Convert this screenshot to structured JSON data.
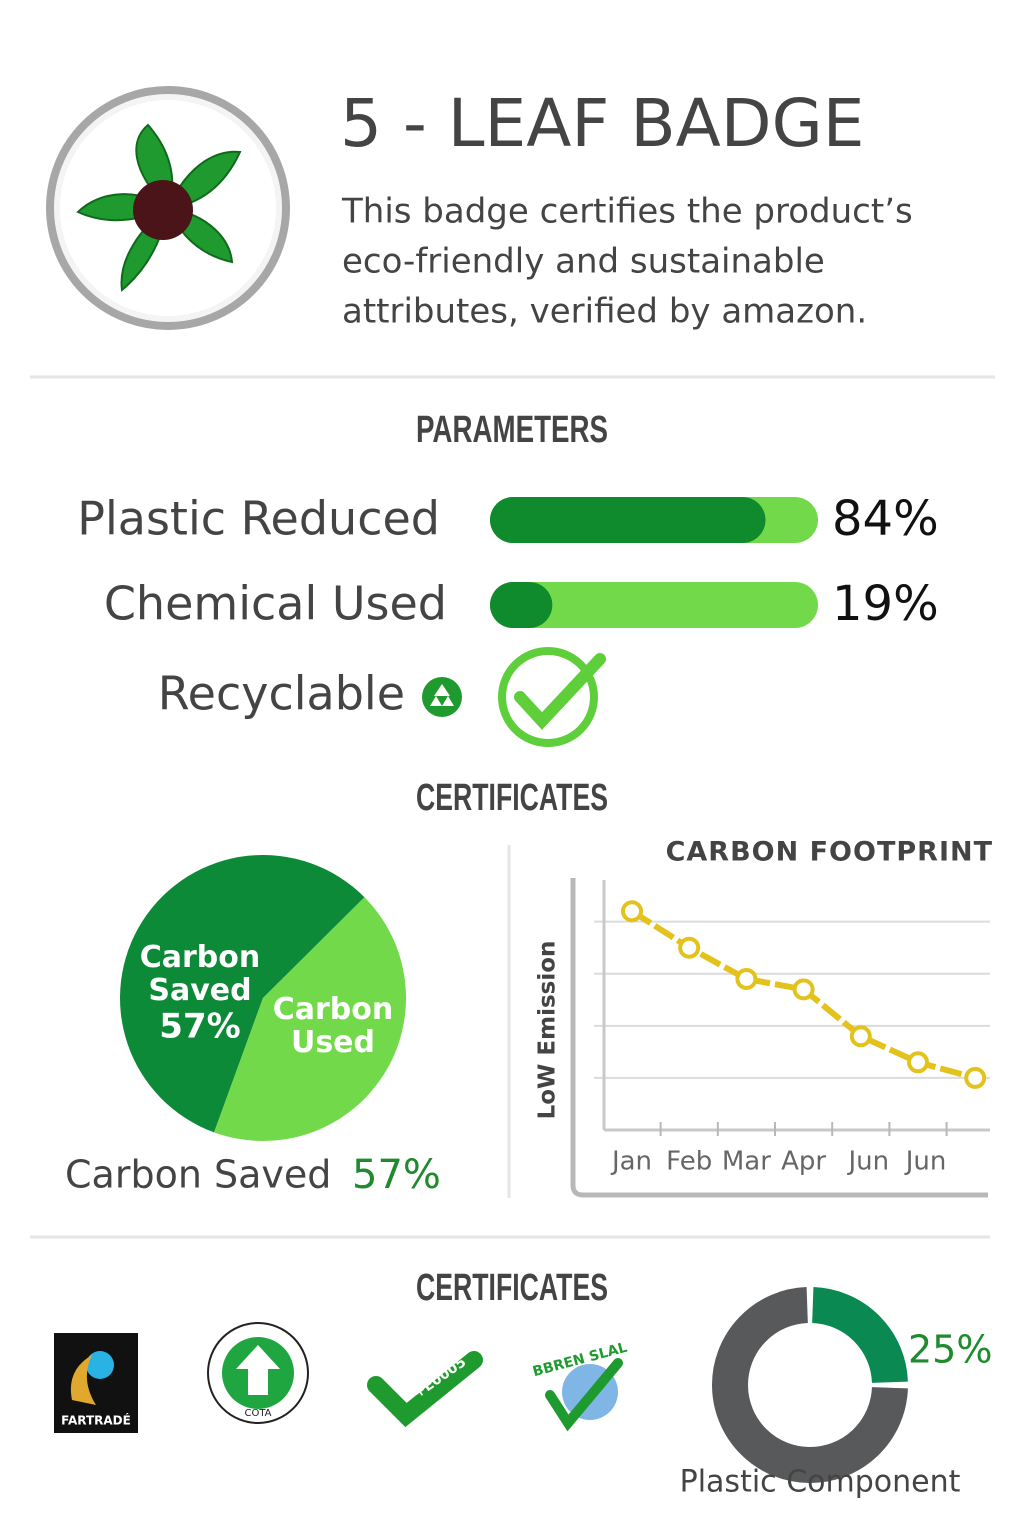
{
  "header": {
    "title": "5 - LEAF BADGE",
    "description": [
      "This badge certifies the product’s",
      "eco-friendly and sustainable",
      "attributes, verified by amazon."
    ]
  },
  "parameters": {
    "title": "PARAMETERS",
    "recyclable": "Recyclable"
  },
  "certificates_title": "CERTIFICATES",
  "certificates_bottom": {
    "title": "CERTIFICATES",
    "logos": [
      "FARTRADÉ",
      "COTA",
      "+E0005",
      "BBREN SLAL"
    ]
  },
  "chart_data": [
    {
      "type": "bar",
      "categories": [
        "Plastic Reduced",
        "Chemical Used"
      ],
      "values": [
        84,
        19
      ],
      "value_labels": [
        "84%",
        "19%"
      ],
      "xlim": [
        0,
        100
      ],
      "color": "#0f8a2c",
      "track_color": "#72d94a"
    },
    {
      "type": "pie",
      "categories": [
        "Carbon Saved",
        "Carbon Used"
      ],
      "values": [
        57,
        43
      ],
      "value_labels": [
        "57%",
        null
      ],
      "colors": [
        "#0d8a37",
        "#72d94a"
      ]
    },
    {
      "type": "line",
      "title": "CARBON FOOTPRINT",
      "y_label": "LoW Emission",
      "categories": [
        "Jan",
        "Feb",
        "Mar",
        "Apr",
        "Jun",
        "Jun",
        null
      ],
      "values": [
        4.2,
        3.5,
        2.9,
        2.7,
        1.8,
        1.3,
        1.0
      ],
      "ylim": [
        0,
        4.8
      ],
      "yticks": [
        1,
        2,
        3,
        4
      ],
      "grid": true,
      "color": "#e3c21c"
    },
    {
      "type": "donut",
      "title": "Plastic Component",
      "values": [
        25,
        75
      ],
      "value_labels": [
        "25%",
        null
      ],
      "colors": [
        "#0a8a52",
        "#58595b"
      ]
    }
  ]
}
